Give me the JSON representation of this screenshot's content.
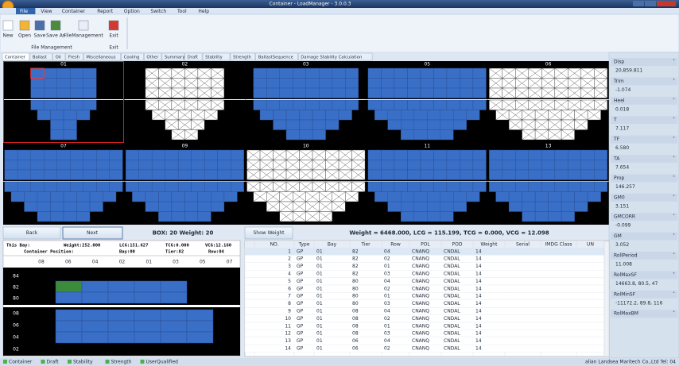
{
  "title_bar": {
    "title": "Container - LoadManager - 3.0.0.3"
  },
  "menu": [
    "File",
    "View",
    "Container",
    "Report",
    "Option",
    "Switch",
    "Tool",
    "Help"
  ],
  "ribbon": {
    "buttons": [
      "New",
      "Open",
      "Save",
      "Save As",
      "FileManagement",
      "Exit"
    ],
    "groups": [
      "File Management",
      "Exit"
    ]
  },
  "tabs": [
    "Container",
    "Ballast",
    "Oil",
    "Fresh",
    "Miscellaneous",
    "Cooling",
    "Other",
    "Summary",
    "Draft",
    "Stability",
    "Strength",
    "BallastSequence",
    "Damage Stability Calculation"
  ],
  "bays": [
    "01",
    "02",
    "03",
    "05",
    "06",
    "07",
    "09",
    "10",
    "11",
    "13"
  ],
  "controls": {
    "back": "Back",
    "next": "Next",
    "box_info": "BOX: 20 Weight: 20",
    "show_weight": "Show Weight",
    "totals": "Weight = 6468.000, LCG = 115.199, TCG = 0.000, VCG = 12.098"
  },
  "bay_info": {
    "this_bay": "This Bay:",
    "weight": "Weight:252.000",
    "lcg": "LCG:151.627",
    "tcg": "TCG:0.000",
    "vcg": "VCG:12.160",
    "position": "Container Position:",
    "bay": "Bay:00",
    "tier": "Tier:82",
    "row": "Row:04"
  },
  "bay_rows": [
    "08",
    "06",
    "04",
    "02",
    "01",
    "03",
    "05",
    "07"
  ],
  "bay_tiers_top": [
    "84",
    "82",
    "80"
  ],
  "bay_tiers_bottom": [
    "08",
    "06",
    "04",
    "02"
  ],
  "table": {
    "columns": [
      "NO.",
      "Type",
      "Bay",
      "Tier",
      "Row",
      "POL",
      "POD",
      "Weight",
      "Serial",
      "IMDG Class",
      "UN"
    ],
    "rows": [
      [
        "1",
        "GP",
        "01",
        "82",
        "04",
        "CNANQ",
        "CNDAL",
        "14"
      ],
      [
        "2",
        "GP",
        "01",
        "82",
        "02",
        "CNANQ",
        "CNDAL",
        "14"
      ],
      [
        "3",
        "GP",
        "01",
        "82",
        "01",
        "CNANQ",
        "CNDAL",
        "14"
      ],
      [
        "4",
        "GP",
        "01",
        "82",
        "03",
        "CNANQ",
        "CNDAL",
        "14"
      ],
      [
        "5",
        "GP",
        "01",
        "80",
        "04",
        "CNANQ",
        "CNDAL",
        "14"
      ],
      [
        "6",
        "GP",
        "01",
        "80",
        "02",
        "CNANQ",
        "CNDAL",
        "14"
      ],
      [
        "7",
        "GP",
        "01",
        "80",
        "01",
        "CNANQ",
        "CNDAL",
        "14"
      ],
      [
        "8",
        "GP",
        "01",
        "80",
        "03",
        "CNANQ",
        "CNDAL",
        "14"
      ],
      [
        "9",
        "GP",
        "01",
        "08",
        "04",
        "CNANQ",
        "CNDAL",
        "14"
      ],
      [
        "10",
        "GP",
        "01",
        "08",
        "02",
        "CNANQ",
        "CNDAL",
        "14"
      ],
      [
        "11",
        "GP",
        "01",
        "08",
        "01",
        "CNANQ",
        "CNDAL",
        "14"
      ],
      [
        "12",
        "GP",
        "01",
        "08",
        "03",
        "CNANQ",
        "CNDAL",
        "14"
      ],
      [
        "13",
        "GP",
        "01",
        "06",
        "04",
        "CNANQ",
        "CNDAL",
        "14"
      ],
      [
        "14",
        "GP",
        "01",
        "06",
        "02",
        "CNANQ",
        "CNDAL",
        "14"
      ]
    ]
  },
  "properties": [
    {
      "label": "Disp",
      "value": "20,859.811"
    },
    {
      "label": "Trim",
      "value": "-1.074"
    },
    {
      "label": "Heel",
      "value": "0.018"
    },
    {
      "label": "T",
      "value": "7.117"
    },
    {
      "label": "TF",
      "value": "6.580"
    },
    {
      "label": "TA",
      "value": "7.654"
    },
    {
      "label": "Prop",
      "value": "146.257"
    },
    {
      "label": "GM0",
      "value": "3.151"
    },
    {
      "label": "GMCORR",
      "value": "-0.099"
    },
    {
      "label": "GM",
      "value": "3.052"
    },
    {
      "label": "RollPeriod",
      "value": "11.008"
    },
    {
      "label": "RolMaxSF",
      "value": "14663.8, 80.5, 47"
    },
    {
      "label": "RolMinSF",
      "value": "-11172.2, 89.8, 116"
    },
    {
      "label": "RolMaxBM"
    }
  ],
  "status": {
    "items": [
      "Container",
      "Draft",
      "Stability",
      "Strength",
      "UserQualified"
    ],
    "company": "alian Landsea Maritech Co.,Ltd  Tel: 04"
  }
}
